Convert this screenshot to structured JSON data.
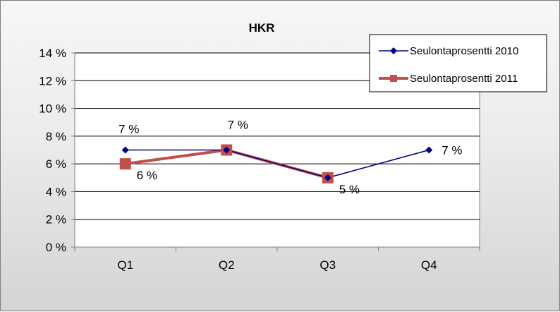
{
  "chart_data": {
    "type": "line",
    "title": "HKR",
    "xlabel": "",
    "ylabel": "",
    "categories": [
      "Q1",
      "Q2",
      "Q3",
      "Q4"
    ],
    "ylim": [
      0,
      14
    ],
    "y_ticks": [
      0,
      2,
      4,
      6,
      8,
      10,
      12,
      14
    ],
    "y_tick_labels": [
      "0 %",
      "2 %",
      "4 %",
      "6 %",
      "8 %",
      "10 %",
      "12 %",
      "14 %"
    ],
    "grid": true,
    "legend_position": "top-right",
    "series": [
      {
        "name": "Seulontaprosentti 2010",
        "values": [
          7,
          7,
          5,
          7
        ],
        "color": "#000080",
        "marker": "diamond",
        "data_labels": [
          "7 %",
          "7 %",
          "",
          "7 %"
        ]
      },
      {
        "name": "Seulontaprosentti 2011",
        "values": [
          6,
          7,
          5,
          null
        ],
        "color": "#c0504d",
        "marker": "square",
        "data_labels": [
          "6 %",
          "",
          "5 %",
          ""
        ]
      }
    ]
  }
}
